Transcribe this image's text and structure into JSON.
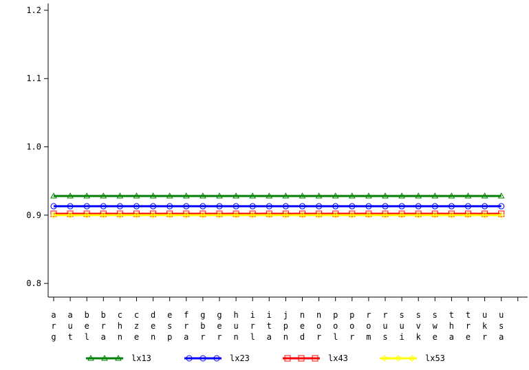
{
  "chart_data": {
    "type": "line",
    "title": "",
    "xlabel": "",
    "ylabel": "",
    "categories": [
      [
        "a",
        "r",
        "g"
      ],
      [
        "a",
        "u",
        "t"
      ],
      [
        "b",
        "e",
        "l"
      ],
      [
        "b",
        "r",
        "a"
      ],
      [
        "c",
        "h",
        "n"
      ],
      [
        "c",
        "z",
        "e"
      ],
      [
        "d",
        "e",
        "n"
      ],
      [
        "e",
        "s",
        "p"
      ],
      [
        "f",
        "r",
        "a"
      ],
      [
        "g",
        "b",
        "r"
      ],
      [
        "g",
        "e",
        "r"
      ],
      [
        "h",
        "u",
        "n"
      ],
      [
        "i",
        "r",
        "l"
      ],
      [
        "i",
        "t",
        "a"
      ],
      [
        "j",
        "p",
        "n"
      ],
      [
        "n",
        "e",
        "d"
      ],
      [
        "n",
        "o",
        "r"
      ],
      [
        "p",
        "o",
        "l"
      ],
      [
        "p",
        "o",
        "r"
      ],
      [
        "r",
        "o",
        "m"
      ],
      [
        "r",
        "u",
        "s"
      ],
      [
        "s",
        "u",
        "i"
      ],
      [
        "s",
        "v",
        "k"
      ],
      [
        "s",
        "w",
        "e"
      ],
      [
        "t",
        "h",
        "a"
      ],
      [
        "t",
        "r",
        "e"
      ],
      [
        "u",
        "k",
        "r"
      ],
      [
        "u",
        "s",
        "a"
      ]
    ],
    "ylim": [
      0.78,
      1.21
    ],
    "yticks": [
      "0.8",
      "0.9",
      "1.0",
      "1.1",
      "1.2"
    ],
    "ytick_values": [
      0.8,
      0.9,
      1.0,
      1.1,
      1.2
    ],
    "legend_position": "bottom",
    "series": [
      {
        "name": "lx13",
        "color": "#008000",
        "marker": "triangle",
        "value": 0.928
      },
      {
        "name": "lx23",
        "color": "#0000ff",
        "marker": "circle",
        "value": 0.913
      },
      {
        "name": "lx43",
        "color": "#ff0000",
        "marker": "square",
        "value": 0.902
      },
      {
        "name": "lx53",
        "color": "#ffff00",
        "marker": "diamond",
        "value": 0.9
      }
    ]
  }
}
